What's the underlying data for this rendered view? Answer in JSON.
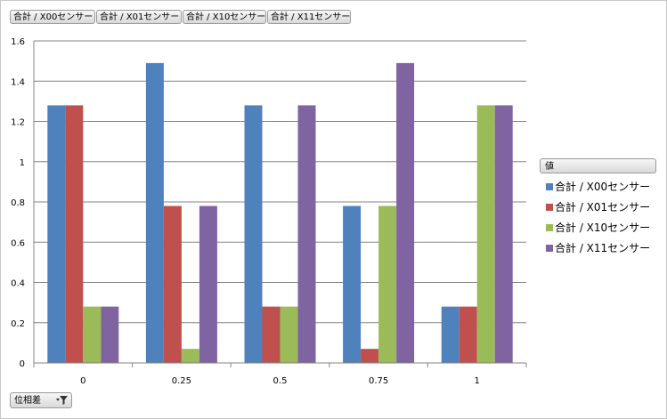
{
  "field_buttons": [
    "合計 / X00センサー",
    "合計 / X01センサー",
    "合計 / X10センサー",
    "合計 / X11センサー"
  ],
  "legend": {
    "header": "値"
  },
  "axis_field": {
    "label": "位相差",
    "icon": "filter-dropdown-icon"
  },
  "chart_data": {
    "type": "bar",
    "categories": [
      "0",
      "0.25",
      "0.5",
      "0.75",
      "1"
    ],
    "series": [
      {
        "name": "合計 / X00センサー",
        "color": "#4F81BD",
        "values": [
          1.28,
          1.49,
          1.28,
          0.78,
          0.28
        ]
      },
      {
        "name": "合計 / X01センサー",
        "color": "#C0504D",
        "values": [
          1.28,
          0.78,
          0.28,
          0.07,
          0.28
        ]
      },
      {
        "name": "合計 / X10センサー",
        "color": "#9BBB59",
        "values": [
          0.28,
          0.07,
          0.28,
          0.78,
          1.28
        ]
      },
      {
        "name": "合計 / X11センサー",
        "color": "#8064A2",
        "values": [
          0.28,
          0.78,
          1.28,
          1.49,
          1.28
        ]
      }
    ],
    "ylim": [
      0,
      1.6
    ],
    "yticks": [
      "0",
      "0.2",
      "0.4",
      "0.6",
      "0.8",
      "1",
      "1.2",
      "1.4",
      "1.6"
    ],
    "grid": true,
    "legend_position": "right"
  }
}
